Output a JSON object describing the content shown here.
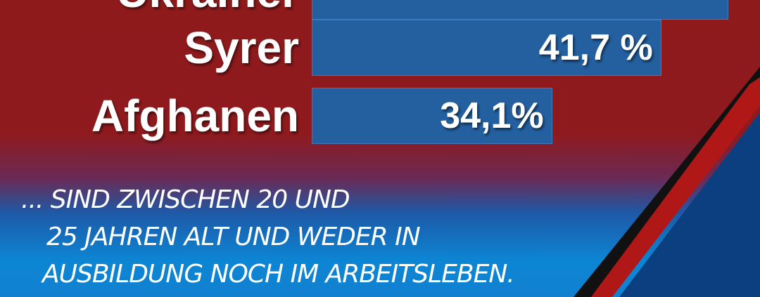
{
  "chart_data": {
    "type": "bar",
    "orientation": "horizontal",
    "categories": [
      "Ukrainer",
      "Syrer",
      "Afghanen"
    ],
    "values": [
      null,
      41.7,
      34.1
    ],
    "value_labels": [
      "",
      "41,7 %",
      "34,1%"
    ],
    "colors": {
      "bar": "#2460a0",
      "background_top": "#8e1a1c",
      "background_bottom": "#0c86d4"
    }
  },
  "caption": [
    "... SIND ZWISCHEN 20 UND",
    "25 JAHREN ALT UND WEDER IN",
    "AUSBILDUNG NOCH IM ARBEITSLEBEN."
  ]
}
